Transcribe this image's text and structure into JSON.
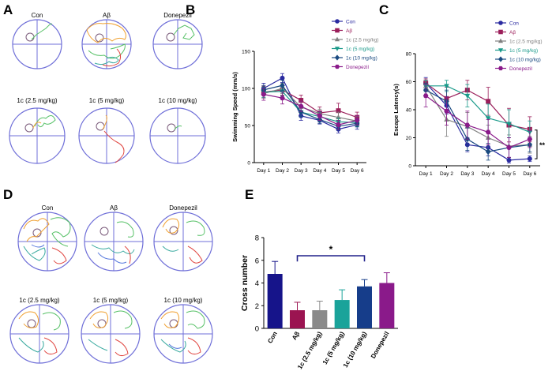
{
  "colors": {
    "axis": "#000000",
    "pool": "#6f6fd8",
    "platform": "#7a5a7a",
    "track_orange": "#f0a030",
    "track_green": "#55c065",
    "track_teal": "#3aaaa0",
    "track_red": "#e04540",
    "track_blue": "#5577dd",
    "significance": "#20208a"
  },
  "panels": {
    "A": {
      "letter": "A",
      "labels": [
        "Con",
        "Aβ",
        "Donepezil",
        "1c (2.5 mg/kg)",
        "1c (5 mg/kg)",
        "1c (10 mg/kg)"
      ]
    },
    "D": {
      "letter": "D",
      "labels": [
        "Con",
        "Aβ",
        "Donepezil",
        "1c (2.5 mg/kg)",
        "1c (5 mg/kg)",
        "1c (10 mg/kg)"
      ]
    },
    "B": {
      "letter": "B"
    },
    "C": {
      "letter": "C"
    },
    "E": {
      "letter": "E"
    }
  },
  "chart_data": [
    {
      "id": "B",
      "type": "line",
      "title": "",
      "xlabel": "",
      "ylabel": "Swimming Speed (mm/s)",
      "categories": [
        "Day 1",
        "Day 2",
        "Day 3",
        "Day 4",
        "Day 5",
        "Day 6"
      ],
      "ylim": [
        0,
        150
      ],
      "yticks": [
        0,
        50,
        100,
        150
      ],
      "legend_position": "top-right",
      "series": [
        {
          "name": "Con",
          "color": "#2a2aa0",
          "marker": "circle",
          "values": [
            100,
            114,
            63,
            57,
            45,
            51
          ],
          "errors": [
            7,
            6,
            6,
            5,
            5,
            6
          ]
        },
        {
          "name": "Aβ",
          "color": "#9b1e5a",
          "marker": "square",
          "values": [
            95,
            98,
            84,
            67,
            70,
            61
          ],
          "errors": [
            8,
            7,
            7,
            8,
            10,
            7
          ]
        },
        {
          "name": "1c (2.5 mg/kg)",
          "color": "#808080",
          "marker": "triangle-up",
          "values": [
            93,
            100,
            75,
            66,
            61,
            56
          ],
          "errors": [
            6,
            7,
            8,
            6,
            7,
            6
          ]
        },
        {
          "name": "1c (5 mg/kg)",
          "color": "#1a9a8a",
          "marker": "triangle-down",
          "values": [
            95,
            96,
            68,
            62,
            55,
            54
          ],
          "errors": [
            7,
            6,
            6,
            6,
            5,
            5
          ]
        },
        {
          "name": "1c (10 mg/kg)",
          "color": "#1a4a80",
          "marker": "diamond",
          "values": [
            98,
            104,
            68,
            58,
            49,
            53
          ],
          "errors": [
            6,
            7,
            6,
            5,
            5,
            5
          ]
        },
        {
          "name": "Donepezil",
          "color": "#8a1a8a",
          "marker": "hexagon",
          "values": [
            92,
            87,
            76,
            63,
            51,
            57
          ],
          "errors": [
            8,
            8,
            7,
            6,
            6,
            6
          ]
        }
      ]
    },
    {
      "id": "C",
      "type": "line",
      "title": "",
      "xlabel": "",
      "ylabel": "Escape Latency(s)",
      "categories": [
        "Day 1",
        "Day 2",
        "Day 3",
        "Day 4",
        "Day 5",
        "Day 6"
      ],
      "ylim": [
        0,
        80
      ],
      "yticks": [
        0,
        20,
        40,
        60,
        80
      ],
      "legend_position": "top-right",
      "annotation": "**",
      "series": [
        {
          "name": "Con",
          "color": "#2a2aa0",
          "marker": "circle",
          "values": [
            59,
            43,
            15,
            13,
            4,
            5
          ],
          "errors": [
            4,
            6,
            5,
            6,
            2,
            2
          ]
        },
        {
          "name": "Aβ",
          "color": "#9b1e5a",
          "marker": "square",
          "values": [
            59,
            48,
            54,
            46,
            29,
            26
          ],
          "errors": [
            3,
            8,
            7,
            10,
            12,
            9
          ]
        },
        {
          "name": "1c (2.5 mg/kg)",
          "color": "#808080",
          "marker": "triangle-up",
          "values": [
            57,
            33,
            28,
            20,
            14,
            15
          ],
          "errors": [
            4,
            12,
            10,
            9,
            8,
            6
          ]
        },
        {
          "name": "1c (5 mg/kg)",
          "color": "#1a9a8a",
          "marker": "triangle-down",
          "values": [
            57,
            57,
            50,
            34,
            30,
            24
          ],
          "errors": [
            4,
            4,
            8,
            10,
            10,
            8
          ]
        },
        {
          "name": "1c (10 mg/kg)",
          "color": "#1a4a80",
          "marker": "diamond",
          "values": [
            54,
            46,
            19,
            10,
            13,
            15
          ],
          "errors": [
            5,
            8,
            8,
            6,
            7,
            5
          ]
        },
        {
          "name": "Donepezil",
          "color": "#8a1a8a",
          "marker": "hexagon",
          "values": [
            50,
            39,
            29,
            24,
            13,
            19
          ],
          "errors": [
            8,
            10,
            10,
            9,
            7,
            6
          ]
        }
      ]
    },
    {
      "id": "E",
      "type": "bar",
      "title": "",
      "xlabel": "",
      "ylabel": "Cross number",
      "categories": [
        "Con",
        "Aβ",
        "1c (2.5 mg/kg)",
        "1c (5 mg/kg)",
        "1c (10 mg/kg)",
        "Donepezil"
      ],
      "values": [
        4.8,
        1.6,
        1.6,
        2.5,
        3.7,
        4.0
      ],
      "errors": [
        1.1,
        0.7,
        0.8,
        0.9,
        0.6,
        0.9
      ],
      "colors": [
        "#16148a",
        "#9b1451",
        "#8a8a8a",
        "#1aa39a",
        "#163d8a",
        "#8a1a8a"
      ],
      "ylim": [
        0,
        8
      ],
      "yticks": [
        0,
        2,
        4,
        6,
        8
      ],
      "annotation": "*"
    }
  ]
}
